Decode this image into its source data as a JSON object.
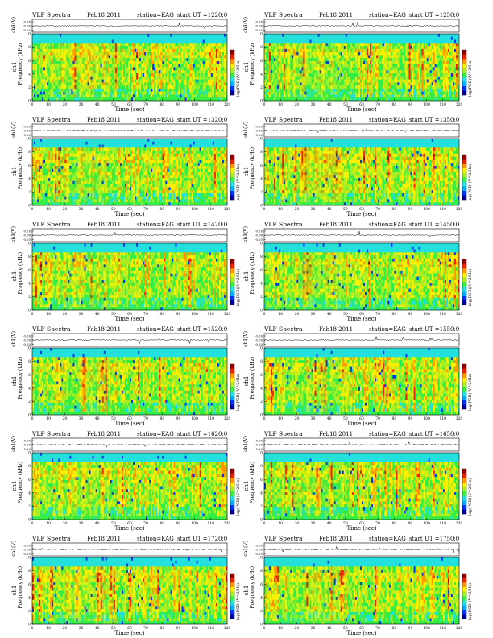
{
  "panels": [
    {
      "header": "VLF Spectra",
      "date": "Feb18 2011",
      "station": "station=KAG",
      "start": "start UT =1220:0"
    },
    {
      "header": "VLF Spectra",
      "date": "Feb18 2011",
      "station": "station=KAG",
      "start": "start UT =1250:0"
    },
    {
      "header": "VLF Spectra",
      "date": "Feb18 2011",
      "station": "station=KAG",
      "start": "start UT =1320:0"
    },
    {
      "header": "VLF Spectra",
      "date": "Feb18 2011",
      "station": "station=KAG",
      "start": "start UT =1350:0"
    },
    {
      "header": "VLF Spectra",
      "date": "Feb18 2011",
      "station": "station=KAG",
      "start": "start UT =1420:0"
    },
    {
      "header": "VLF Spectra",
      "date": "Feb18 2011",
      "station": "station=KAG",
      "start": "start UT =1450:0"
    },
    {
      "header": "VLF Spectra",
      "date": "Feb18 2011",
      "station": "station=KAG",
      "start": "start UT =1520:0"
    },
    {
      "header": "VLF Spectra",
      "date": "Feb18 2011",
      "station": "station=KAG",
      "start": "start UT =1550:0"
    },
    {
      "header": "VLF Spectra",
      "date": "Feb18 2011",
      "station": "station=KAG",
      "start": "start UT =1620:0"
    },
    {
      "header": "VLF Spectra",
      "date": "Feb18 2011",
      "station": "station=KAG",
      "start": "start UT =1650:0"
    },
    {
      "header": "VLF Spectra",
      "date": "Feb18 2011",
      "station": "station=KAG",
      "start": "start UT =1720:0"
    },
    {
      "header": "VLF Spectra",
      "date": "Feb18 2011",
      "station": "station=KAG",
      "start": "start UT =1750:0"
    }
  ],
  "labels": {
    "waveform_ylabel": "ch1(V)",
    "spec_ylabel_line1": "ch1",
    "spec_ylabel_line2": "Frequency (kHz)",
    "xlabel": "Time (sec)",
    "colorbar_label": "log(PSD)(V^2/Hz)"
  },
  "chart_data": {
    "type": "heatmap",
    "x_ticks": [
      "0",
      "10",
      "20",
      "30",
      "40",
      "50",
      "60",
      "70",
      "80",
      "90",
      "100",
      "110",
      "120"
    ],
    "x_range": [
      0,
      120
    ],
    "y_ticks": [
      "0",
      "2",
      "4",
      "6",
      "8",
      "10"
    ],
    "y_range": [
      0,
      10
    ],
    "waveform_ticks": [
      "0.20",
      "0.00",
      "-0.20"
    ],
    "waveform_range": [
      -0.2,
      0.2
    ],
    "colormap": [
      "#0000a0",
      "#0033ff",
      "#00b0ff",
      "#22e0e0",
      "#33ee44",
      "#aaee22",
      "#ffee00",
      "#ff9900",
      "#ee2200",
      "#990000"
    ]
  }
}
